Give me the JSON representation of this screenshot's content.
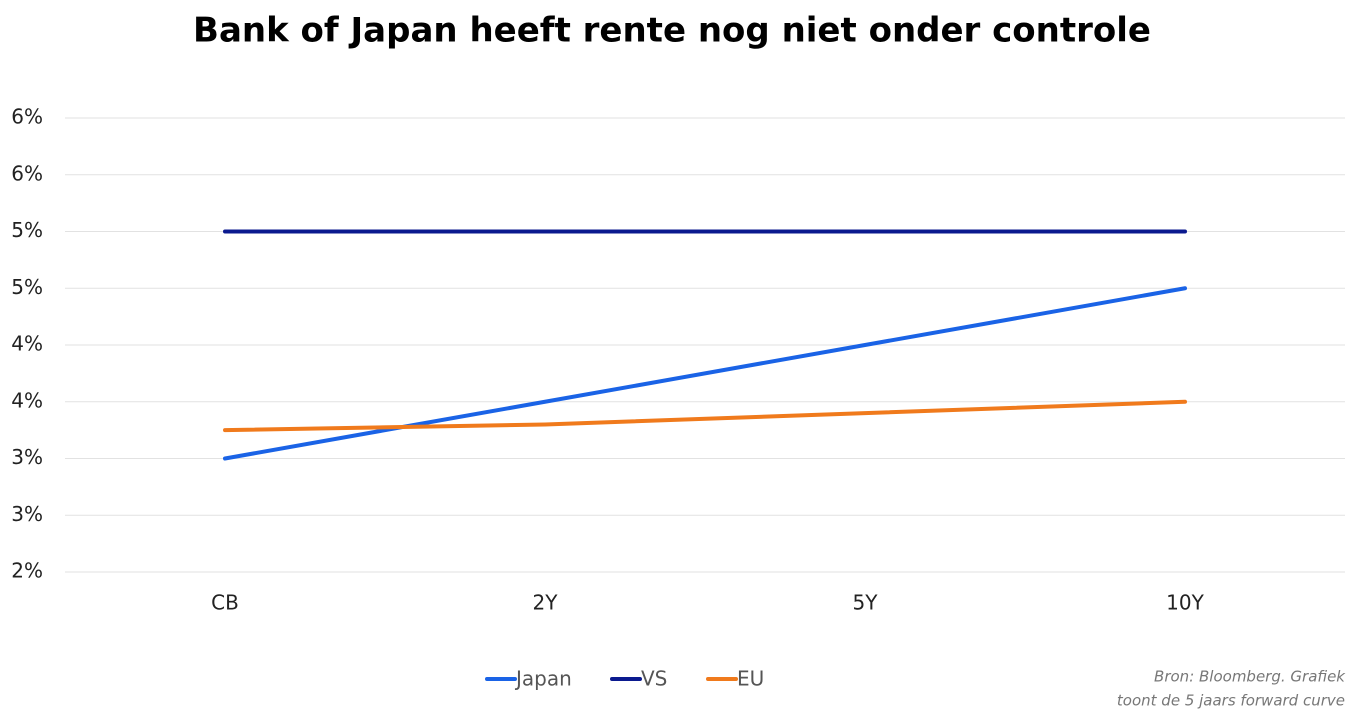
{
  "chart_data": {
    "type": "line",
    "title": "Bank of Japan heeft rente nog niet onder controle",
    "categories": [
      "CB",
      "2Y",
      "5Y",
      "10Y"
    ],
    "series": [
      {
        "name": "Japan",
        "color": "#1a63e6",
        "values": [
          3.0,
          3.5,
          4.0,
          4.5
        ]
      },
      {
        "name": "VS",
        "color": "#0b1a8f",
        "values": [
          5.0,
          5.0,
          5.0,
          5.0
        ]
      },
      {
        "name": "EU",
        "color": "#f07a1c",
        "values": [
          3.25,
          3.3,
          3.4,
          3.5
        ]
      }
    ],
    "ylim": [
      2,
      6
    ],
    "yticks": [
      {
        "value": 2,
        "label": "2%"
      },
      {
        "value": 2.5,
        "label": "3%"
      },
      {
        "value": 3,
        "label": "3%"
      },
      {
        "value": 3.5,
        "label": "4%"
      },
      {
        "value": 4,
        "label": "4%"
      },
      {
        "value": 4.5,
        "label": "5%"
      },
      {
        "value": 5,
        "label": "5%"
      },
      {
        "value": 5.5,
        "label": "6%"
      },
      {
        "value": 6,
        "label": "6%"
      }
    ],
    "grid": true,
    "legend": "bottom",
    "annotations": [
      "Bron: Bloomberg. Grafiek",
      "toont de 5 jaars forward curve"
    ]
  }
}
